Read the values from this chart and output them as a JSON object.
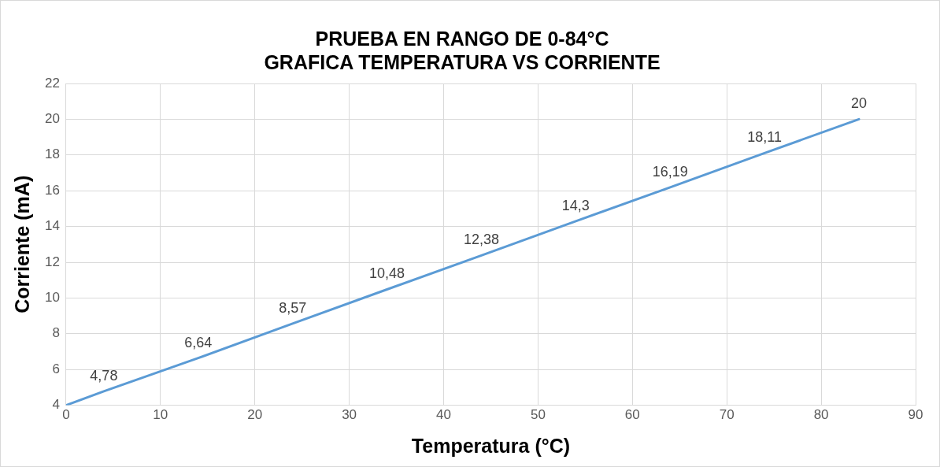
{
  "chart_data": {
    "type": "line",
    "title": "PRUEBA EN RANGO DE 0-84°C\nGRAFICA TEMPERATURA VS CORRIENTE",
    "xlabel": "Temperatura (°C)",
    "ylabel": "Corriente (mA)",
    "x": [
      0,
      4,
      14,
      24,
      34,
      44,
      54,
      64,
      74,
      84
    ],
    "series": [
      {
        "color": "#5b9bd5",
        "values": [
          4,
          4.78,
          6.64,
          8.57,
          10.48,
          12.38,
          14.3,
          16.19,
          18.11,
          20
        ],
        "value_labels": [
          null,
          "4,78",
          "6,64",
          "8,57",
          "10,48",
          "12,38",
          "14,3",
          "16,19",
          "18,11",
          "20"
        ]
      }
    ],
    "xlim": [
      0,
      90
    ],
    "xticks": [
      0,
      10,
      20,
      30,
      40,
      50,
      60,
      70,
      80,
      90
    ],
    "ylim": [
      4,
      22
    ],
    "yticks": [
      4,
      6,
      8,
      10,
      12,
      14,
      16,
      18,
      20,
      22
    ],
    "grid": true,
    "legend": false,
    "marker": "none",
    "line_style": "solid"
  }
}
